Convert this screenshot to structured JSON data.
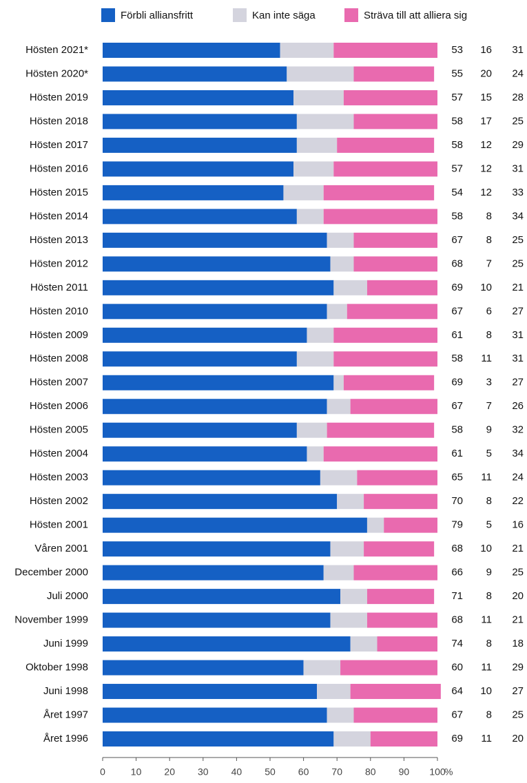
{
  "chart_data": {
    "type": "stacked_barh",
    "categories": [
      "Hösten 2021*",
      "Hösten 2020*",
      "Hösten 2019",
      "Hösten 2018",
      "Hösten 2017",
      "Hösten 2016",
      "Hösten 2015",
      "Hösten 2014",
      "Hösten 2013",
      "Hösten 2012",
      "Hösten 2011",
      "Hösten 2010",
      "Hösten 2009",
      "Hösten 2008",
      "Hösten 2007",
      "Hösten 2006",
      "Hösten 2005",
      "Hösten 2004",
      "Hösten 2003",
      "Hösten 2002",
      "Hösten 2001",
      "Våren 2001",
      "December 2000",
      "Juli 2000",
      "November 1999",
      "Juni 1999",
      "Oktober 1998",
      "Juni 1998",
      "Året 1997",
      "Året 1996"
    ],
    "series": [
      {
        "name": "Förbli alliansfritt",
        "color": "#1560c4",
        "values": [
          53,
          55,
          57,
          58,
          58,
          57,
          54,
          58,
          67,
          68,
          69,
          67,
          61,
          58,
          69,
          67,
          58,
          61,
          65,
          70,
          79,
          68,
          66,
          71,
          68,
          74,
          60,
          64,
          67,
          69
        ]
      },
      {
        "name": "Kan inte säga",
        "color": "#d4d4de",
        "values": [
          16,
          20,
          15,
          17,
          12,
          12,
          12,
          8,
          8,
          7,
          10,
          6,
          8,
          11,
          3,
          7,
          9,
          5,
          11,
          8,
          5,
          10,
          9,
          8,
          11,
          8,
          11,
          10,
          8,
          11
        ]
      },
      {
        "name": "Sträva till att alliera sig",
        "color": "#e96aaf",
        "values": [
          31,
          24,
          28,
          25,
          29,
          31,
          33,
          34,
          25,
          25,
          21,
          27,
          31,
          31,
          27,
          26,
          32,
          34,
          24,
          22,
          16,
          21,
          25,
          20,
          21,
          18,
          29,
          27,
          25,
          20
        ]
      }
    ],
    "xlim": [
      0,
      100
    ],
    "xticks": [
      0,
      10,
      20,
      30,
      40,
      50,
      60,
      70,
      80,
      90,
      100
    ],
    "x_label": "%"
  }
}
